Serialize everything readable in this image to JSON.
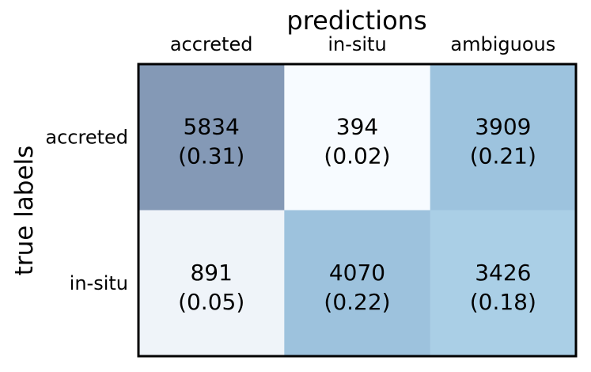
{
  "chart_data": {
    "type": "heatmap",
    "title": "predictions",
    "xlabel": "",
    "ylabel": "true labels",
    "x_categories": [
      "accreted",
      "in-situ",
      "ambiguous"
    ],
    "y_categories": [
      "accreted",
      "in-situ"
    ],
    "cells": [
      [
        {
          "count": 5834,
          "fraction": 0.31,
          "count_label": "5834",
          "fraction_label": "(0.31)"
        },
        {
          "count": 394,
          "fraction": 0.02,
          "count_label": "394",
          "fraction_label": "(0.02)"
        },
        {
          "count": 3909,
          "fraction": 0.21,
          "count_label": "3909",
          "fraction_label": "(0.21)"
        }
      ],
      [
        {
          "count": 891,
          "fraction": 0.05,
          "count_label": "891",
          "fraction_label": "(0.05)"
        },
        {
          "count": 4070,
          "fraction": 0.22,
          "count_label": "4070",
          "fraction_label": "(0.22)"
        },
        {
          "count": 3426,
          "fraction": 0.18,
          "count_label": "3426",
          "fraction_label": "(0.18)"
        }
      ]
    ],
    "colors": [
      [
        "#8499b6",
        "#f7fbff",
        "#9dc3de"
      ],
      [
        "#eff4f9",
        "#9dc2dd",
        "#aacfe6"
      ]
    ],
    "text_color": "#000000",
    "border_color": "#000000",
    "grid": false,
    "legend": "none"
  }
}
